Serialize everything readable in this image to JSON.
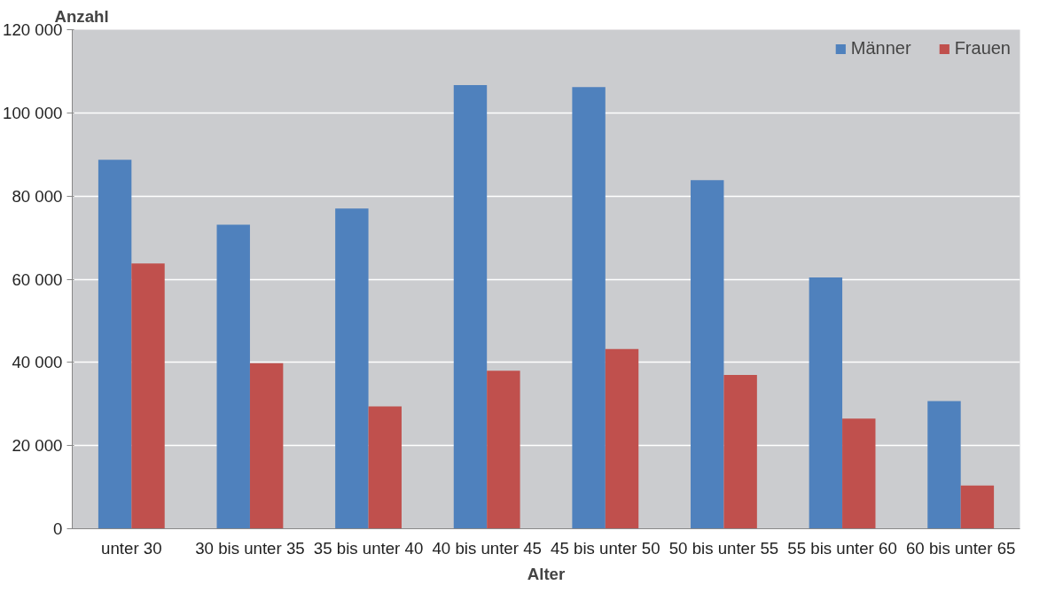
{
  "chart_data": {
    "type": "bar",
    "xlabel": "Alter",
    "ylabel": "Anzahl",
    "categories": [
      "unter 30",
      "30 bis unter 35",
      "35 bis unter 40",
      "40 bis unter 45",
      "45 bis unter 50",
      "50 bis unter 55",
      "55 bis unter 60",
      "60 bis unter 65"
    ],
    "series": [
      {
        "name": "Männer",
        "color": "#4f81bd",
        "values": [
          88700,
          73100,
          77000,
          106700,
          106200,
          83800,
          60400,
          30700
        ]
      },
      {
        "name": "Frauen",
        "color": "#c0504d",
        "values": [
          63800,
          39800,
          29400,
          38000,
          43200,
          37000,
          26500,
          10400
        ]
      }
    ],
    "ylim": [
      0,
      120000
    ],
    "yticks": [
      0,
      {
        "value": 20000,
        "label": "20 000"
      },
      {
        "value": 40000,
        "label": "40 000"
      },
      {
        "value": 60000,
        "label": "60 000"
      },
      {
        "value": 80000,
        "label": "80 000"
      },
      {
        "value": 100000,
        "label": "100 000"
      },
      {
        "value": 120000,
        "label": "120 000"
      }
    ],
    "grid": "y",
    "legend": "top right"
  }
}
